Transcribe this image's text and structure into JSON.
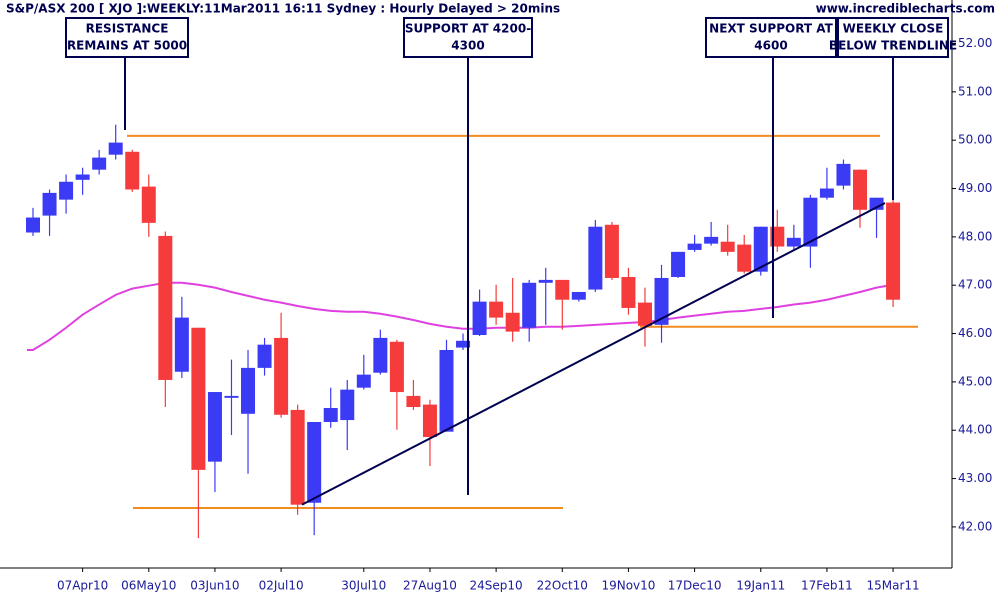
{
  "chart_data": {
    "type": "candlestick",
    "title": "S&P/ASX 200 [ XJO ]:WEEKLY:11Mar2011 16:11 Sydney : Hourly Delayed > 20mins",
    "source": "www.incrediblecharts.com",
    "categories": [
      null,
      null,
      null,
      "07Apr10",
      null,
      null,
      null,
      "06May10",
      null,
      null,
      null,
      "03Jun10",
      null,
      null,
      null,
      "02Jul10",
      null,
      null,
      null,
      null,
      "30Jul10",
      null,
      null,
      null,
      "27Aug10",
      null,
      null,
      null,
      "24Sep10",
      null,
      null,
      null,
      "22Oct10",
      null,
      null,
      null,
      "19Nov10",
      null,
      null,
      null,
      "17Dec10",
      null,
      null,
      null,
      "19Jan11",
      null,
      null,
      null,
      "17Feb11",
      null,
      null,
      null,
      "15Mar11"
    ],
    "open": [
      48.09,
      48.44,
      48.77,
      49.18,
      49.39,
      49.7,
      49.76,
      49.04,
      48.02,
      45.21,
      46.12,
      43.35,
      44.67,
      44.34,
      45.29,
      45.91,
      44.42,
      42.5,
      44.17,
      44.21,
      44.88,
      45.19,
      45.83,
      44.71,
      44.53,
      43.97,
      45.71,
      45.97,
      46.66,
      46.43,
      46.12,
      47.05,
      47.11,
      46.7,
      46.91,
      48.25,
      47.17,
      46.64,
      46.18,
      47.17,
      47.73,
      47.86,
      47.9,
      47.84,
      47.28,
      48.21,
      47.8,
      47.8,
      48.81,
      49.06,
      49.39,
      48.56,
      48.71
    ],
    "high": [
      48.6,
      48.98,
      49.29,
      49.43,
      49.8,
      50.32,
      49.8,
      49.29,
      48.11,
      46.76,
      46.12,
      44.79,
      45.46,
      45.66,
      45.91,
      46.43,
      44.53,
      44.17,
      44.88,
      45.04,
      45.56,
      46.08,
      45.87,
      45.04,
      44.63,
      45.87,
      46.0,
      46.91,
      47.01,
      47.15,
      47.11,
      47.36,
      47.11,
      46.86,
      48.35,
      48.31,
      47.36,
      46.95,
      47.42,
      47.69,
      48.04,
      48.31,
      48.25,
      48.04,
      48.21,
      48.56,
      48.25,
      48.87,
      49.43,
      49.6,
      49.39,
      48.81,
      48.77
    ],
    "low": [
      48.02,
      48.02,
      48.48,
      48.87,
      49.29,
      49.6,
      48.93,
      48.0,
      44.48,
      45.08,
      41.77,
      42.72,
      43.9,
      43.1,
      45.13,
      44.26,
      42.25,
      41.83,
      44.05,
      43.59,
      44.84,
      45.15,
      44.01,
      44.42,
      43.26,
      43.97,
      45.66,
      45.95,
      46.18,
      45.83,
      45.83,
      46.18,
      46.08,
      46.66,
      46.86,
      47.11,
      46.39,
      45.73,
      45.81,
      47.15,
      47.69,
      47.82,
      47.61,
      47.24,
      47.2,
      47.69,
      47.73,
      47.36,
      48.77,
      48.98,
      48.19,
      47.98,
      46.55
    ],
    "close": [
      48.4,
      48.91,
      49.14,
      49.29,
      49.64,
      49.95,
      48.98,
      48.29,
      45.04,
      46.33,
      43.18,
      44.79,
      44.71,
      45.29,
      45.77,
      44.32,
      42.46,
      44.17,
      44.46,
      44.84,
      45.15,
      45.91,
      44.79,
      44.48,
      43.86,
      45.66,
      45.85,
      46.66,
      46.33,
      46.04,
      47.05,
      47.11,
      46.7,
      46.86,
      48.21,
      47.15,
      46.53,
      46.16,
      47.15,
      47.69,
      47.86,
      48.0,
      47.69,
      47.28,
      48.21,
      47.8,
      47.98,
      48.81,
      49.0,
      49.51,
      48.56,
      48.81,
      46.7
    ],
    "up_color": "#3b3bf5",
    "down_color": "#f53b3b",
    "moving_average": {
      "color": "#e040e0",
      "values": [
        45.66,
        45.87,
        46.12,
        46.39,
        46.6,
        46.8,
        46.93,
        46.99,
        47.05,
        47.05,
        47.01,
        46.95,
        46.86,
        46.78,
        46.7,
        46.64,
        46.57,
        46.51,
        46.47,
        46.45,
        46.45,
        46.41,
        46.35,
        46.28,
        46.2,
        46.14,
        46.1,
        46.1,
        46.12,
        46.12,
        46.12,
        46.14,
        46.14,
        46.16,
        46.18,
        46.2,
        46.22,
        46.24,
        46.28,
        46.33,
        46.37,
        46.41,
        46.45,
        46.47,
        46.51,
        46.55,
        46.6,
        46.64,
        46.7,
        46.78,
        46.86,
        46.95,
        47.01
      ]
    },
    "levels": [
      {
        "value": 50.09,
        "color": "#f28c1e"
      },
      {
        "value": 42.39,
        "color": "#f28c1e"
      },
      {
        "value": 46.14,
        "color": "#f28c1e"
      }
    ],
    "trendline": {
      "values": [
        42.46,
        48.7
      ],
      "color": "#000050"
    },
    "annotations": [
      [
        "RESISTANCE",
        "REMAINS AT 5000"
      ],
      [
        "SUPPORT AT 4200-",
        "4300"
      ],
      [
        "NEXT SUPPORT AT",
        "4600"
      ],
      [
        "WEEKLY CLOSE",
        "BELOW TRENDLINE"
      ]
    ],
    "ylim": [
      41.15,
      52.9
    ],
    "yticks": [
      {
        "value": 42,
        "label": "42.00"
      },
      {
        "value": 43,
        "label": "43.00"
      },
      {
        "value": 44,
        "label": "44.00"
      },
      {
        "value": 45,
        "label": "45.00"
      },
      {
        "value": 46,
        "label": "46.00"
      },
      {
        "value": 47,
        "label": "47.00"
      },
      {
        "value": 48,
        "label": "48.00"
      },
      {
        "value": 49,
        "label": "49.00"
      },
      {
        "value": 50,
        "label": "50.00"
      },
      {
        "value": 51,
        "label": "51.00"
      },
      {
        "value": 52,
        "label": "52.00"
      }
    ]
  }
}
